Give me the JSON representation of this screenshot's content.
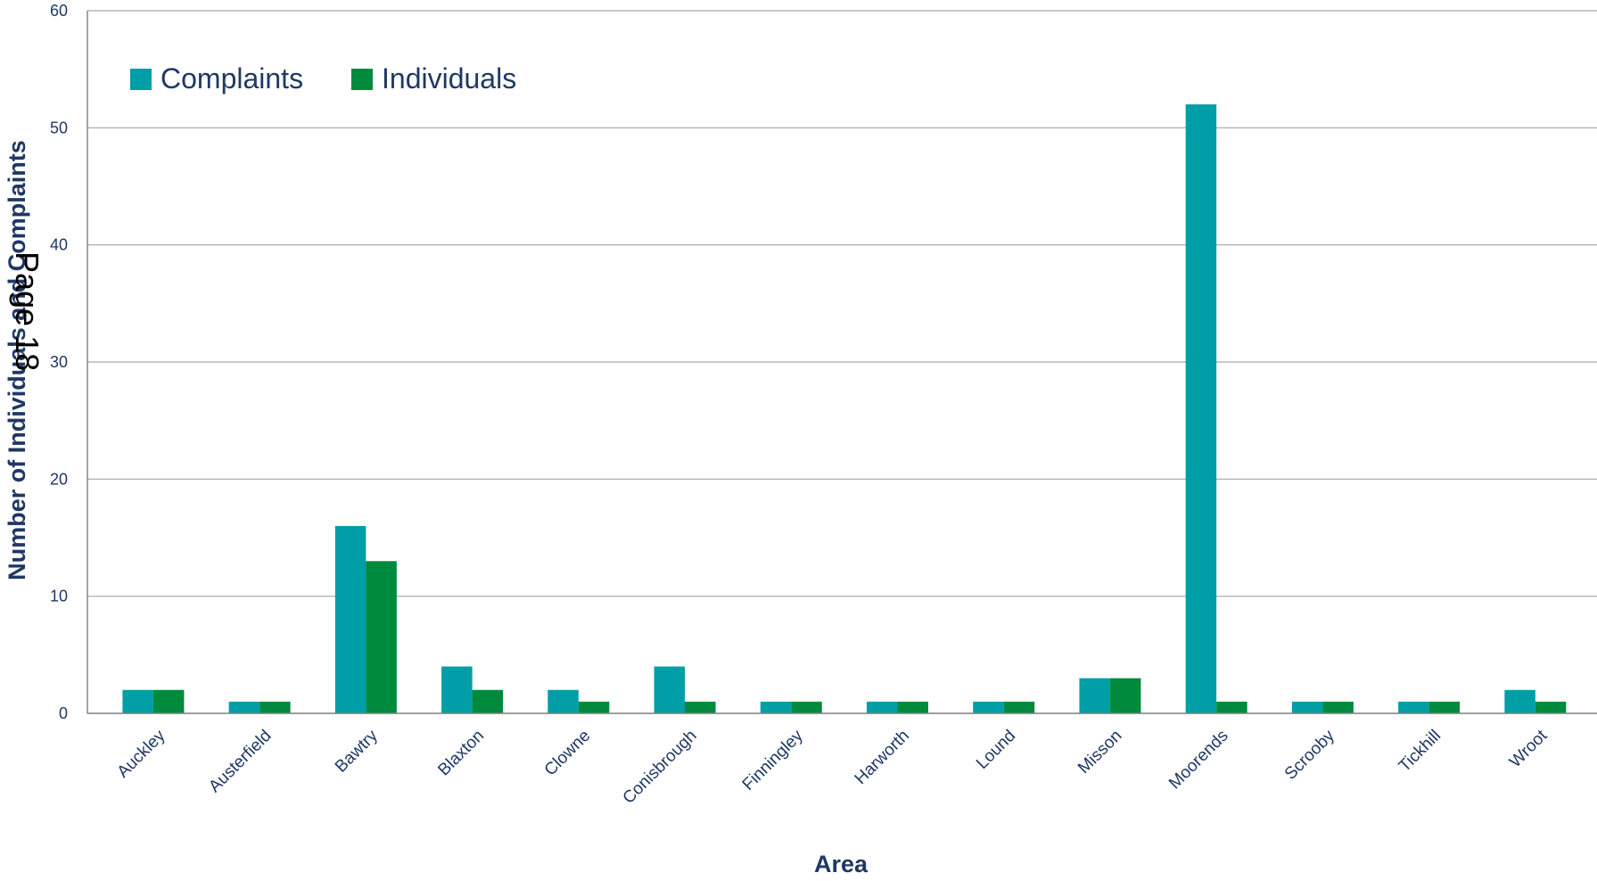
{
  "page_stamp": "Page 18",
  "chart_data": {
    "type": "bar",
    "xlabel": "Area",
    "ylabel": "Number of Individuals and Complaints",
    "ylim": [
      0,
      60
    ],
    "yticks": [
      0,
      10,
      20,
      30,
      40,
      50,
      60
    ],
    "grid": true,
    "legend_position": "top-left",
    "categories": [
      "Auckley",
      "Austerfield",
      "Bawtry",
      "Blaxton",
      "Clowne",
      "Conisbrough",
      "Finningley",
      "Harworth",
      "Lound",
      "Misson",
      "Moorends",
      "Scrooby",
      "Tickhill",
      "Wroot"
    ],
    "series": [
      {
        "name": "Complaints",
        "color": "#009ea6",
        "values": [
          2,
          1,
          16,
          4,
          2,
          4,
          1,
          1,
          1,
          3,
          52,
          1,
          1,
          2
        ]
      },
      {
        "name": "Individuals",
        "color": "#008a3e",
        "values": [
          2,
          1,
          13,
          2,
          1,
          1,
          1,
          1,
          1,
          3,
          1,
          1,
          1,
          1
        ]
      }
    ]
  }
}
